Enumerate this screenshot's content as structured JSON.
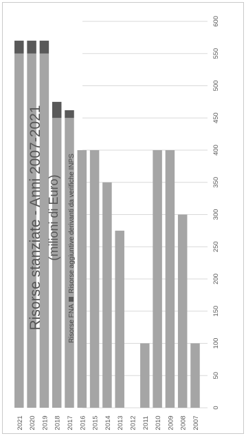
{
  "chart_data": {
    "type": "bar",
    "orientation": "horizontal",
    "stacked": true,
    "title": "Risorse stanziate - Anni 2007-2021",
    "subtitle": "(milioni di Euro)",
    "xlim": [
      0,
      600
    ],
    "ticks": [
      0,
      50,
      100,
      150,
      200,
      250,
      300,
      350,
      400,
      450,
      500,
      550,
      600
    ],
    "categories": [
      "2007",
      "2008",
      "2009",
      "2010",
      "2011",
      "2012",
      "2013",
      "2014",
      "2015",
      "2016",
      "2017",
      "2018",
      "2019",
      "2020",
      "2021"
    ],
    "series": [
      {
        "name": "Risorse FNA",
        "color": "#a5a5a5",
        "values": [
          100,
          300,
          400,
          400,
          100,
          0,
          275,
          350,
          400,
          400,
          450,
          450,
          550,
          550,
          550
        ]
      },
      {
        "name": "Risorse aggiuntive derivanti da verifiche INPS",
        "color": "#595959",
        "values": [
          0,
          0,
          0,
          0,
          0,
          0,
          0,
          0,
          0,
          0,
          12,
          25,
          20,
          20,
          20
        ]
      }
    ],
    "grid": true,
    "legend_position": "right"
  }
}
